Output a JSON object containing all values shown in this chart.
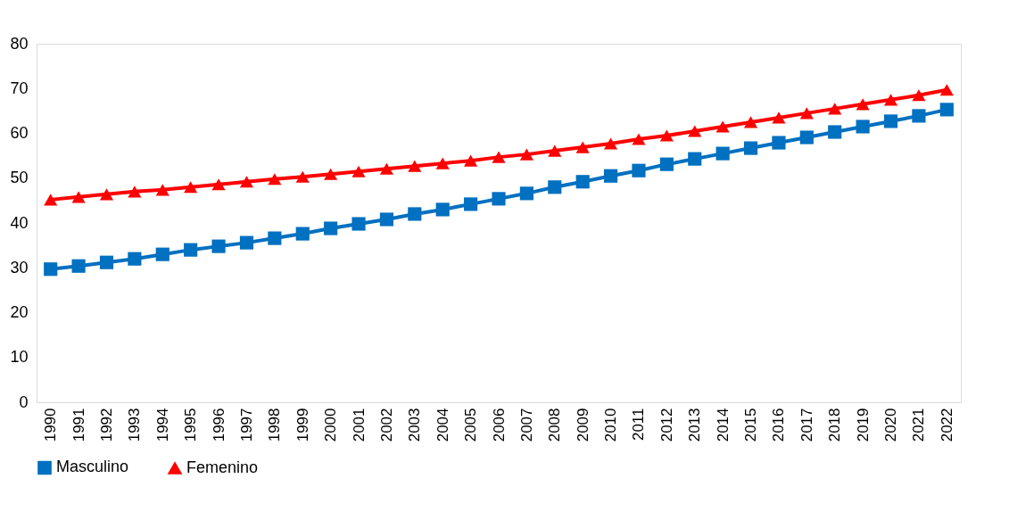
{
  "chart_data": {
    "type": "line",
    "categories": [
      "1990",
      "1991",
      "1992",
      "1993",
      "1994",
      "1995",
      "1996",
      "1997",
      "1998",
      "1999",
      "2000",
      "2001",
      "2002",
      "2003",
      "2004",
      "2005",
      "2006",
      "2007",
      "2008",
      "2009",
      "2010",
      "2011",
      "2012",
      "2013",
      "2014",
      "2015",
      "2016",
      "2017",
      "2018",
      "2019",
      "2020",
      "2021",
      "2022"
    ],
    "series": [
      {
        "name": "Masculino",
        "color": "#0070c0",
        "marker": "square",
        "values": [
          29.7,
          30.4,
          31.2,
          32.0,
          33.0,
          34.0,
          34.8,
          35.6,
          36.6,
          37.6,
          38.8,
          39.8,
          40.8,
          42.0,
          43.0,
          44.2,
          45.4,
          46.6,
          48.0,
          49.2,
          50.5,
          51.7,
          53.1,
          54.3,
          55.5,
          56.7,
          57.9,
          59.1,
          60.3,
          61.5,
          62.7,
          63.9,
          65.3
        ]
      },
      {
        "name": "Femenino",
        "color": "#ff0000",
        "marker": "triangle",
        "values": [
          45.2,
          45.8,
          46.4,
          47.0,
          47.4,
          48.0,
          48.6,
          49.2,
          49.8,
          50.3,
          50.9,
          51.5,
          52.1,
          52.7,
          53.3,
          53.9,
          54.7,
          55.3,
          56.1,
          56.9,
          57.7,
          58.7,
          59.5,
          60.5,
          61.5,
          62.5,
          63.5,
          64.5,
          65.5,
          66.5,
          67.5,
          68.5,
          69.7
        ]
      }
    ],
    "ylim": [
      0,
      80
    ],
    "yticks": [
      0,
      10,
      20,
      30,
      40,
      50,
      60,
      70,
      80
    ],
    "grid": false,
    "legend": "bottom",
    "line_style": "solid"
  }
}
